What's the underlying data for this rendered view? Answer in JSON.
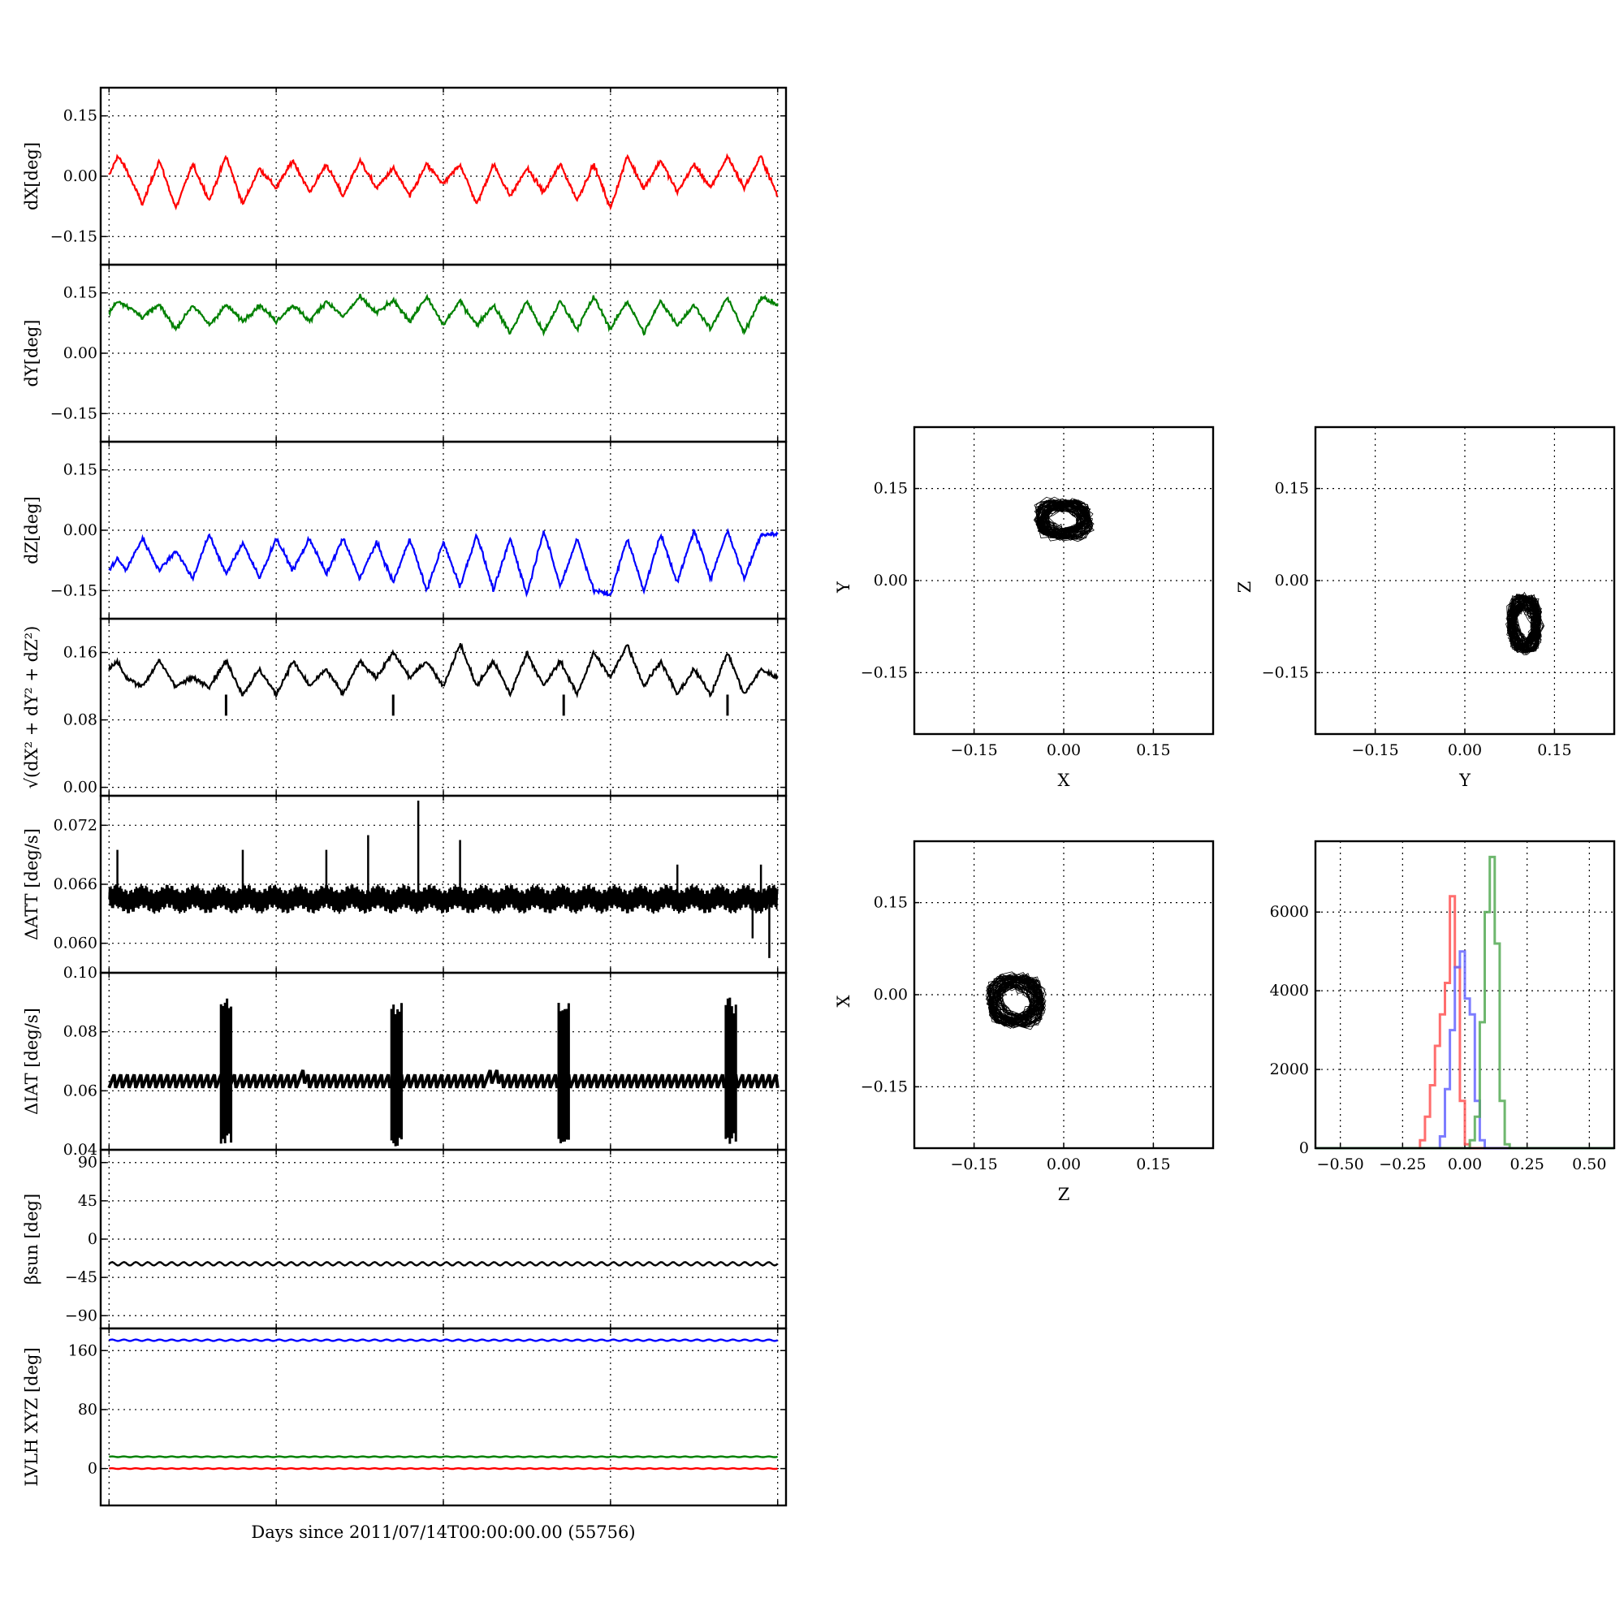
{
  "chart_data": [
    {
      "type": "line",
      "panel": "dX",
      "ylabel": "dX[deg]",
      "yticks": [
        "0.15",
        "0.00",
        "−0.15"
      ],
      "ytick_values": [
        0.15,
        0.0,
        -0.15
      ],
      "ylim": [
        -0.22,
        0.22
      ],
      "xlim": [
        -0.05,
        4.05
      ],
      "series": [
        {
          "color": "#ff0000",
          "x": [
            0,
            0.05,
            0.1,
            0.2,
            0.3,
            0.4,
            0.5,
            0.6,
            0.7,
            0.8,
            0.9,
            1.0,
            1.1,
            1.2,
            1.3,
            1.4,
            1.5,
            1.6,
            1.7,
            1.8,
            1.9,
            2.0,
            2.1,
            2.2,
            2.3,
            2.4,
            2.5,
            2.6,
            2.7,
            2.8,
            2.9,
            3.0,
            3.1,
            3.2,
            3.3,
            3.4,
            3.5,
            3.6,
            3.7,
            3.8,
            3.9,
            4.0
          ],
          "values": [
            0.0,
            0.05,
            0.02,
            -0.07,
            0.04,
            -0.08,
            0.03,
            -0.06,
            0.05,
            -0.07,
            0.02,
            -0.03,
            0.04,
            -0.04,
            0.03,
            -0.05,
            0.04,
            -0.03,
            0.02,
            -0.05,
            0.03,
            -0.02,
            0.03,
            -0.07,
            0.03,
            -0.05,
            0.02,
            -0.04,
            0.03,
            -0.06,
            0.03,
            -0.08,
            0.05,
            -0.03,
            0.04,
            -0.04,
            0.03,
            -0.03,
            0.05,
            -0.03,
            0.05,
            -0.05
          ]
        }
      ]
    },
    {
      "type": "line",
      "panel": "dY",
      "ylabel": "dY[deg]",
      "yticks": [
        "0.15",
        "0.00",
        "−0.15"
      ],
      "ytick_values": [
        0.15,
        0.0,
        -0.15
      ],
      "ylim": [
        -0.22,
        0.22
      ],
      "xlim": [
        -0.05,
        4.05
      ],
      "series": [
        {
          "color": "#008000",
          "x": [
            0,
            0.05,
            0.1,
            0.2,
            0.3,
            0.4,
            0.5,
            0.6,
            0.7,
            0.8,
            0.9,
            1.0,
            1.1,
            1.2,
            1.3,
            1.4,
            1.5,
            1.6,
            1.7,
            1.8,
            1.9,
            2.0,
            2.1,
            2.2,
            2.3,
            2.4,
            2.5,
            2.6,
            2.7,
            2.8,
            2.9,
            3.0,
            3.1,
            3.2,
            3.3,
            3.4,
            3.5,
            3.6,
            3.7,
            3.8,
            3.9,
            4.0
          ],
          "values": [
            0.1,
            0.13,
            0.12,
            0.09,
            0.12,
            0.06,
            0.12,
            0.07,
            0.12,
            0.08,
            0.12,
            0.08,
            0.12,
            0.08,
            0.13,
            0.09,
            0.14,
            0.1,
            0.13,
            0.08,
            0.14,
            0.07,
            0.13,
            0.07,
            0.12,
            0.05,
            0.13,
            0.05,
            0.13,
            0.06,
            0.14,
            0.06,
            0.13,
            0.05,
            0.13,
            0.07,
            0.12,
            0.06,
            0.14,
            0.05,
            0.14,
            0.12
          ]
        }
      ]
    },
    {
      "type": "line",
      "panel": "dZ",
      "ylabel": "dZ[deg]",
      "yticks": [
        "0.15",
        "0.00",
        "−0.15"
      ],
      "ytick_values": [
        0.15,
        0.0,
        -0.15
      ],
      "ylim": [
        -0.22,
        0.22
      ],
      "xlim": [
        -0.05,
        4.05
      ],
      "series": [
        {
          "color": "#0000ff",
          "x": [
            0,
            0.05,
            0.1,
            0.2,
            0.3,
            0.4,
            0.5,
            0.6,
            0.7,
            0.8,
            0.9,
            1.0,
            1.1,
            1.2,
            1.3,
            1.4,
            1.5,
            1.6,
            1.7,
            1.8,
            1.9,
            2.0,
            2.1,
            2.2,
            2.3,
            2.4,
            2.5,
            2.6,
            2.7,
            2.8,
            2.9,
            3.0,
            3.1,
            3.2,
            3.3,
            3.4,
            3.5,
            3.6,
            3.7,
            3.8,
            3.9,
            4.0
          ],
          "values": [
            -0.1,
            -0.07,
            -0.1,
            -0.02,
            -0.1,
            -0.05,
            -0.12,
            -0.01,
            -0.11,
            -0.03,
            -0.12,
            -0.02,
            -0.1,
            -0.02,
            -0.11,
            -0.02,
            -0.12,
            -0.03,
            -0.13,
            -0.02,
            -0.15,
            -0.03,
            -0.14,
            -0.01,
            -0.15,
            -0.02,
            -0.16,
            0.0,
            -0.14,
            -0.02,
            -0.15,
            -0.16,
            -0.02,
            -0.15,
            -0.01,
            -0.13,
            0.0,
            -0.12,
            0.0,
            -0.12,
            -0.01,
            -0.01
          ]
        }
      ]
    },
    {
      "type": "line",
      "panel": "norm",
      "ylabel": "√(dX² + dY² + dZ²)",
      "yticks": [
        "0.16",
        "0.08",
        "0.00"
      ],
      "ytick_values": [
        0.16,
        0.08,
        0.0
      ],
      "ylim": [
        -0.01,
        0.2
      ],
      "xlim": [
        -0.05,
        4.05
      ],
      "series": [
        {
          "color": "#000000",
          "x": [
            0,
            0.05,
            0.1,
            0.2,
            0.3,
            0.4,
            0.5,
            0.6,
            0.7,
            0.8,
            0.9,
            1.0,
            1.1,
            1.2,
            1.3,
            1.4,
            1.5,
            1.6,
            1.7,
            1.8,
            1.9,
            2.0,
            2.1,
            2.2,
            2.3,
            2.4,
            2.5,
            2.6,
            2.7,
            2.8,
            2.9,
            3.0,
            3.1,
            3.2,
            3.3,
            3.4,
            3.5,
            3.6,
            3.7,
            3.8,
            3.9,
            4.0
          ],
          "values": [
            0.14,
            0.15,
            0.13,
            0.12,
            0.15,
            0.12,
            0.13,
            0.12,
            0.15,
            0.11,
            0.14,
            0.11,
            0.15,
            0.12,
            0.14,
            0.11,
            0.15,
            0.13,
            0.16,
            0.13,
            0.15,
            0.12,
            0.17,
            0.12,
            0.15,
            0.11,
            0.16,
            0.12,
            0.15,
            0.11,
            0.16,
            0.13,
            0.17,
            0.12,
            0.15,
            0.11,
            0.14,
            0.11,
            0.16,
            0.11,
            0.14,
            0.13
          ]
        }
      ]
    },
    {
      "type": "line",
      "panel": "dATT",
      "ylabel": "ΔATT [deg/s]",
      "yticks": [
        "0.072",
        "0.066",
        "0.060"
      ],
      "ytick_values": [
        0.072,
        0.066,
        0.06
      ],
      "ylim": [
        0.057,
        0.075
      ],
      "xlim": [
        -0.05,
        4.05
      ],
      "series": [
        {
          "color": "#000000",
          "baseline": 0.0645,
          "oscillation": 0.0012,
          "spikes": [
            {
              "x": 0.05,
              "value": 0.0695
            },
            {
              "x": 0.8,
              "value": 0.0695
            },
            {
              "x": 1.3,
              "value": 0.0695
            },
            {
              "x": 1.55,
              "value": 0.071
            },
            {
              "x": 1.85,
              "value": 0.0745
            },
            {
              "x": 2.1,
              "value": 0.0705
            },
            {
              "x": 3.4,
              "value": 0.068
            },
            {
              "x": 3.9,
              "value": 0.068
            },
            {
              "x": 3.85,
              "value": 0.0605
            },
            {
              "x": 3.95,
              "value": 0.0585
            }
          ]
        }
      ]
    },
    {
      "type": "line",
      "panel": "dIAT",
      "ylabel": "ΔIAT [deg/s]",
      "yticks": [
        "0.10",
        "0.08",
        "0.06",
        "0.04"
      ],
      "ytick_values": [
        0.1,
        0.08,
        0.06,
        0.04
      ],
      "ylim": [
        0.04,
        0.1
      ],
      "xlim": [
        -0.05,
        4.05
      ],
      "series": [
        {
          "color": "#000000",
          "baseline": 0.064,
          "oscillation": 0.003,
          "bursts": [
            {
              "x": 0.7,
              "min": 0.042,
              "max": 0.092
            },
            {
              "x": 1.72,
              "min": 0.041,
              "max": 0.091
            },
            {
              "x": 2.72,
              "min": 0.042,
              "max": 0.091
            },
            {
              "x": 3.72,
              "min": 0.042,
              "max": 0.092
            }
          ]
        }
      ]
    },
    {
      "type": "line",
      "panel": "beta",
      "ylabel": "βsun [deg]",
      "yticks": [
        "90",
        "45",
        "0",
        "−45",
        "−90"
      ],
      "ytick_values": [
        90,
        45,
        0,
        -45,
        -90
      ],
      "ylim": [
        -105,
        105
      ],
      "xlim": [
        -0.05,
        4.05
      ],
      "series": [
        {
          "color": "#000000",
          "mean": -29,
          "amplitude": 2
        }
      ]
    },
    {
      "type": "line",
      "panel": "lvlh",
      "ylabel": "LVLH XYZ [deg]",
      "yticks": [
        "160",
        "80",
        "0"
      ],
      "ytick_values": [
        160,
        80,
        0
      ],
      "ylim": [
        -50,
        190
      ],
      "xlim": [
        -0.05,
        4.05
      ],
      "xlabel": "Days since 2011/07/14T00:00:00.00 (55756)",
      "series": [
        {
          "color": "#0000ff",
          "mean": 174,
          "amplitude": 1
        },
        {
          "color": "#008000",
          "mean": 16,
          "amplitude": 0.5
        },
        {
          "color": "#ff0000",
          "mean": 0,
          "amplitude": 0.5
        }
      ]
    },
    {
      "type": "scatter",
      "panel": "xy",
      "xlabel": "X",
      "ylabel": "Y",
      "xticks": [
        "−0.15",
        "0.00",
        "0.15"
      ],
      "yticks": [
        "0.15",
        "0.00",
        "−0.15"
      ],
      "xlim": [
        -0.25,
        0.25
      ],
      "ylim": [
        -0.25,
        0.25
      ],
      "cluster": {
        "center": [
          0.0,
          0.1
        ],
        "spread": [
          0.045,
          0.03
        ],
        "color": "#000000"
      }
    },
    {
      "type": "scatter",
      "panel": "yz",
      "xlabel": "Y",
      "ylabel": "Z",
      "xticks": [
        "−0.15",
        "0.00",
        "0.15"
      ],
      "yticks": [
        "0.15",
        "0.00",
        "−0.15"
      ],
      "xlim": [
        -0.25,
        0.25
      ],
      "ylim": [
        -0.25,
        0.25
      ],
      "cluster": {
        "center": [
          0.1,
          -0.07
        ],
        "spread": [
          0.025,
          0.045
        ],
        "color": "#000000"
      }
    },
    {
      "type": "scatter",
      "panel": "zx",
      "xlabel": "Z",
      "ylabel": "X",
      "xticks": [
        "−0.15",
        "0.00",
        "0.15"
      ],
      "yticks": [
        "0.15",
        "0.00",
        "−0.15"
      ],
      "xlim": [
        -0.25,
        0.25
      ],
      "ylim": [
        -0.25,
        0.25
      ],
      "cluster": {
        "center": [
          -0.08,
          -0.01
        ],
        "spread": [
          0.045,
          0.04
        ],
        "color": "#000000"
      }
    },
    {
      "type": "bar",
      "panel": "hist",
      "xticks": [
        "−0.50",
        "−0.25",
        "0.00",
        "0.25",
        "0.50"
      ],
      "xtick_values": [
        -0.5,
        -0.25,
        0,
        0.25,
        0.5
      ],
      "yticks": [
        "6000",
        "4000",
        "2000",
        "0"
      ],
      "ytick_values": [
        6000,
        4000,
        2000,
        0
      ],
      "xlim": [
        -0.6,
        0.6
      ],
      "ylim": [
        0,
        7800
      ],
      "series": [
        {
          "color": "#ff5555",
          "x": [
            -0.2,
            -0.18,
            -0.16,
            -0.14,
            -0.12,
            -0.1,
            -0.08,
            -0.06,
            -0.04,
            -0.02,
            0.0,
            0.02
          ],
          "values": [
            0,
            200,
            800,
            1600,
            2600,
            3400,
            4200,
            6400,
            4600,
            1200,
            100,
            0
          ]
        },
        {
          "color": "#6666ff",
          "x": [
            -0.12,
            -0.1,
            -0.08,
            -0.06,
            -0.04,
            -0.02,
            0.0,
            0.02,
            0.04,
            0.06,
            0.08
          ],
          "values": [
            0,
            300,
            1500,
            3000,
            4600,
            5000,
            3800,
            3400,
            1200,
            200,
            0
          ]
        },
        {
          "color": "#55aa55",
          "x": [
            0.0,
            0.02,
            0.04,
            0.06,
            0.08,
            0.1,
            0.12,
            0.14,
            0.16,
            0.18
          ],
          "values": [
            0,
            200,
            800,
            3200,
            6000,
            7400,
            5200,
            1200,
            100,
            0
          ]
        }
      ]
    }
  ]
}
